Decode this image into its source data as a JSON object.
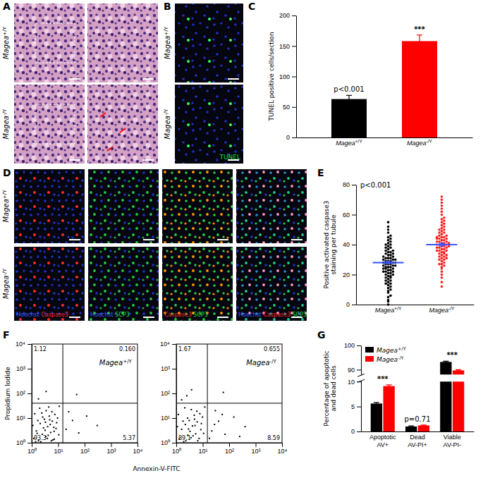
{
  "panel_labels": [
    "A",
    "B",
    "C",
    "D",
    "E",
    "F",
    "G"
  ],
  "genotypes": [
    "Magea+/Y",
    "Magea-/Y"
  ],
  "panel_B": {
    "stain": {
      "text": "TUNEL",
      "color": "#22dd44"
    }
  },
  "panel_D": {
    "columns": [
      [
        {
          "text": "Hoechst",
          "color": "#4060ff"
        },
        {
          "text": "Caspase3",
          "color": "#ff2a2a"
        }
      ],
      [
        {
          "text": "Hoechst",
          "color": "#4060ff"
        },
        {
          "text": "SCP3",
          "color": "#22dd44"
        }
      ],
      [
        {
          "text": "Caspase3",
          "color": "#ff2a2a"
        },
        {
          "text": "SCP3",
          "color": "#22dd44"
        }
      ],
      [
        {
          "text": "Hoechst",
          "color": "#4060ff"
        },
        {
          "text": "Caspase3",
          "color": "#ff2a2a"
        },
        {
          "text": "SCP3",
          "color": "#22dd44"
        }
      ]
    ]
  },
  "chart_data": [
    {
      "type": "bar",
      "categories": [
        "Magea+/Y",
        "Magea-/Y"
      ],
      "values": [
        63,
        158
      ],
      "errors": [
        6,
        10
      ],
      "colors": [
        "#000000",
        "#ff0000"
      ],
      "ylabel": "TUNEL positive cells/section",
      "ylim": [
        0,
        200
      ],
      "yticks": [
        0,
        50,
        100,
        150,
        200
      ],
      "annotations": [
        {
          "text": "p<0.001",
          "category": 0
        },
        {
          "text": "***",
          "category": 1
        }
      ]
    },
    {
      "type": "dot",
      "ylabel": "Positive activated caspase3 staining per tubule",
      "ylim": [
        0,
        80
      ],
      "yticks": [
        0,
        20,
        40,
        60,
        80
      ],
      "annotations": [
        {
          "text": "p<0.001"
        }
      ],
      "series": [
        {
          "name": "Magea+/Y",
          "color": "#000000",
          "mean": 28,
          "error": 0.9,
          "values": [
            2,
            5,
            8,
            9,
            10,
            11,
            12,
            13,
            14,
            14,
            15,
            16,
            16,
            17,
            18,
            18,
            19,
            19,
            20,
            20,
            21,
            21,
            22,
            22,
            22,
            23,
            23,
            24,
            24,
            24,
            25,
            25,
            25,
            26,
            26,
            26,
            27,
            27,
            27,
            28,
            28,
            28,
            29,
            29,
            29,
            30,
            30,
            30,
            31,
            31,
            31,
            32,
            32,
            33,
            33,
            34,
            34,
            35,
            35,
            36,
            36,
            37,
            38,
            38,
            39,
            40,
            40,
            41,
            42,
            43,
            44,
            45,
            46,
            48,
            50,
            52,
            55,
            0,
            3,
            6
          ]
        },
        {
          "name": "Magea-/Y",
          "color": "#ff2020",
          "mean": 40,
          "error": 1.0,
          "values": [
            12,
            15,
            18,
            20,
            22,
            24,
            25,
            26,
            27,
            28,
            29,
            30,
            30,
            31,
            32,
            32,
            33,
            34,
            34,
            35,
            35,
            36,
            36,
            37,
            37,
            38,
            38,
            38,
            39,
            39,
            40,
            40,
            40,
            41,
            41,
            42,
            42,
            42,
            43,
            43,
            44,
            44,
            45,
            45,
            46,
            46,
            47,
            48,
            48,
            49,
            50,
            50,
            51,
            52,
            53,
            54,
            55,
            56,
            57,
            58,
            60,
            62,
            64,
            66,
            68,
            70,
            72,
            33,
            36,
            39,
            41,
            44,
            27,
            31,
            45
          ]
        }
      ]
    },
    {
      "type": "scatter",
      "log": true,
      "color": "#000000",
      "title": "Magea+/Y",
      "xlabel": "Annexin-V-FITC",
      "ylabel": "Propidium Iodide",
      "xlim": [
        1,
        10000
      ],
      "ylim": [
        1,
        10000
      ],
      "xticks": [
        {
          "value": 1,
          "label": "10⁰"
        },
        {
          "value": 10,
          "label": "10¹"
        },
        {
          "value": 100,
          "label": "10²"
        },
        {
          "value": 1000,
          "label": "10³"
        },
        {
          "value": 10000,
          "label": "10⁴"
        }
      ],
      "yticks": [
        {
          "value": 1,
          "label": "10⁰"
        },
        {
          "value": 10,
          "label": "10¹"
        },
        {
          "value": 100,
          "label": "10²"
        },
        {
          "value": 1000,
          "label": "10³"
        },
        {
          "value": 10000,
          "label": "10⁴"
        }
      ],
      "gate": [
        15,
        40
      ],
      "quadrants": {
        "values": [
          1.12,
          0.16,
          5.37,
          93.3
        ],
        "value_labels": [
          "1.12",
          "0.160",
          "5.37",
          "93.3"
        ]
      },
      "x": [
        1.2,
        1.5,
        1.8,
        2.1,
        2.5,
        3.0,
        3.4,
        4.0,
        4.6,
        5.2,
        6.0,
        7.1,
        8.3,
        9.5,
        1.3,
        1.7,
        2.2,
        2.8,
        3.5,
        4.2,
        5.0,
        6.3,
        7.5,
        1.1,
        1.4,
        2.0,
        2.6,
        3.2,
        3.9,
        4.8,
        5.8,
        7.0,
        8.8,
        1.6,
        2.4,
        3.3,
        4.4,
        5.5,
        6.8,
        10.5,
        20,
        35,
        60,
        120,
        300,
        25,
        1.8,
        3.5,
        50,
        11
      ],
      "y": [
        1.5,
        3.0,
        1.2,
        6.0,
        2.2,
        9.0,
        1.8,
        4.5,
        12,
        2.6,
        7.5,
        1.4,
        3.8,
        10,
        15,
        8.0,
        1.1,
        4.0,
        20,
        2.0,
        5.5,
        1.3,
        14,
        5.0,
        1.1,
        25,
        11,
        3.2,
        1.5,
        8.5,
        18,
        2.9,
        6.5,
        2.4,
        16,
        6.8,
        28,
        1.2,
        4.2,
        2.1,
        3.5,
        8.0,
        2.5,
        12,
        5.0,
        18,
        60,
        120,
        90,
        30
      ]
    },
    {
      "type": "scatter",
      "log": true,
      "color": "#000000",
      "title": "Magea-/Y",
      "xlim": [
        1,
        10000
      ],
      "ylim": [
        1,
        10000
      ],
      "xticks": [
        {
          "value": 1,
          "label": "10⁰"
        },
        {
          "value": 10,
          "label": "10¹"
        },
        {
          "value": 100,
          "label": "10²"
        },
        {
          "value": 1000,
          "label": "10³"
        },
        {
          "value": 10000,
          "label": "10⁴"
        }
      ],
      "yticks": [
        {
          "value": 1,
          "label": "10⁰"
        },
        {
          "value": 10,
          "label": "10¹"
        },
        {
          "value": 100,
          "label": "10²"
        },
        {
          "value": 1000,
          "label": "10³"
        },
        {
          "value": 10000,
          "label": "10⁴"
        }
      ],
      "gate": [
        15,
        40
      ],
      "quadrants": {
        "values": [
          1.67,
          0.655,
          8.59,
          89.1
        ],
        "value_labels": [
          "1.67",
          "0.655",
          "8.59",
          "89.1"
        ]
      },
      "x": [
        1.3,
        1.6,
        1.9,
        2.2,
        2.7,
        3.1,
        3.6,
        4.1,
        4.8,
        5.4,
        6.2,
        7.3,
        8.5,
        9.8,
        1.2,
        1.8,
        2.3,
        2.9,
        3.7,
        4.3,
        5.1,
        6.5,
        7.8,
        1.1,
        2.1,
        2.7,
        3.3,
        4.9,
        6.0,
        8.9,
        10.8,
        22,
        40,
        70,
        150,
        400,
        30,
        18,
        55,
        250,
        28,
        1.6,
        3.8,
        2.5,
        60,
        12
      ],
      "y": [
        1.4,
        3.5,
        1.1,
        5.5,
        2.0,
        8.0,
        1.6,
        4.8,
        13,
        2.3,
        7.0,
        1.5,
        3.4,
        11,
        14,
        7.5,
        1.2,
        3.6,
        22,
        1.9,
        5.0,
        1.2,
        15,
        4.5,
        26,
        10,
        2.9,
        9.0,
        19,
        6.0,
        2.4,
        3.0,
        7.5,
        2.2,
        11,
        4.5,
        20,
        1.5,
        14,
        1.8,
        5.5,
        55,
        140,
        80,
        110,
        28
      ]
    },
    {
      "type": "bar",
      "categories": [
        "Apoptotic AV+",
        "Dead AV-PI+",
        "Viable AV-PI-"
      ],
      "series": [
        {
          "name": "Magea+/Y",
          "color": "#000000",
          "values": [
            5.6,
            1.0,
            93.2
          ],
          "errors": [
            0.2,
            0.1,
            0.3
          ]
        },
        {
          "name": "Magea-/Y",
          "color": "#ff0000",
          "values": [
            9.1,
            1.2,
            89.7
          ],
          "errors": [
            0.25,
            0.1,
            0.3
          ]
        }
      ],
      "ylabel": "Percentage of apoptotic and dead cells",
      "ylim": [
        0,
        100
      ],
      "yticks": [
        0,
        5,
        10,
        90,
        100
      ],
      "axis_break": [
        10,
        88
      ],
      "legend": "upper-left",
      "annotations": [
        {
          "text": "***",
          "category": 0
        },
        {
          "text": "p=0.71",
          "category": 1
        },
        {
          "text": "***",
          "category": 2
        }
      ]
    }
  ]
}
